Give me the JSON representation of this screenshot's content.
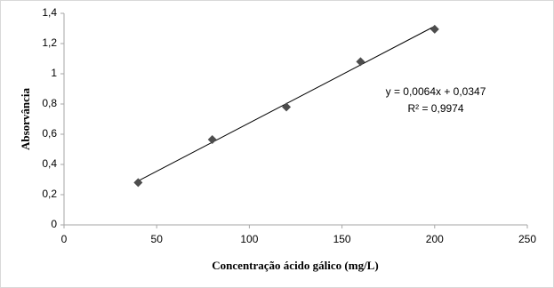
{
  "chart_data": {
    "type": "scatter",
    "x_label": "Concentração ácido gálico (mg/L)",
    "y_label": "Absorvância",
    "x": [
      40,
      80,
      120,
      160,
      200
    ],
    "series": [
      {
        "name": "Absorvância",
        "color": "#4d4d4d",
        "values": [
          0.28,
          0.565,
          0.78,
          1.08,
          1.295
        ]
      }
    ],
    "xlim": [
      0,
      250
    ],
    "xticks": [
      0,
      50,
      100,
      150,
      200,
      250
    ],
    "ylim": [
      0,
      1.4
    ],
    "yticks": [
      0,
      {
        "value": 0.2,
        "label": "0,2"
      },
      {
        "value": 0.4,
        "label": "0,4"
      },
      {
        "value": 0.6,
        "label": "0,6"
      },
      {
        "value": 0.8,
        "label": "0,8"
      },
      1,
      {
        "value": 1.2,
        "label": "1,2"
      },
      {
        "value": 1.4,
        "label": "1,4"
      }
    ],
    "trendline": {
      "slope": 0.0064,
      "intercept": 0.0347,
      "equation": "y = 0,0064x + 0,0347",
      "r_squared": "R² = 0,9974"
    },
    "grid": false
  }
}
